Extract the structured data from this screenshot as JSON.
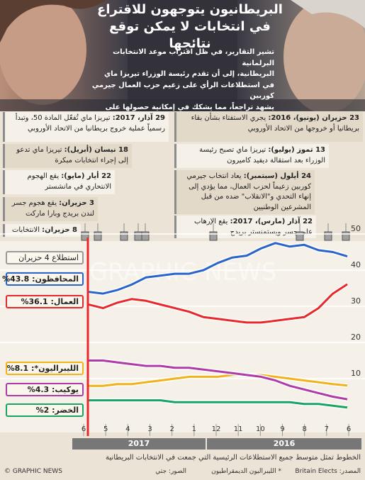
{
  "headline": {
    "line1": "البريطانيون يتوجهون للاقتراع",
    "line2": "في انتخابات لا يمكن توقع نتائجها"
  },
  "intro": [
    "تشير التقارير، في ظل اقتراب موعد الانتخابات البرلمانية",
    "البريطانية، إلى أن تقدم رئيسة الوزراء تيريزا ماي",
    "في استطلاعات الرأي على زعيم حزب العمال جيرمي كوربين",
    "يشهد تراجعاً، مما يشكك في إمكانية حصولها على أغلبية ساحقة"
  ],
  "events": [
    {
      "date": "29 آذار، 2017:",
      "text": "تيريزا ماي تُفعّل المادة 50، وتبدأ رسمياً عملية خروج بريطانيا من الاتحاد الأوروبي"
    },
    {
      "date": "18 نيسان (أبريل):",
      "text": "تيريزا ماي تدعو إلى إجراء انتخابات مبكرة"
    },
    {
      "date": "22 أيار (مايو):",
      "text": "يقع الهجوم الانتحاري في مانشستر"
    },
    {
      "date": "3 حزيران:",
      "text": "يقع هجوم جسر لندن بريدج وبارا ماركت"
    },
    {
      "date": "8 حزيران:",
      "text": "الانتخابات"
    },
    {
      "date": "23 حزيران (يونيو)، 2016:",
      "text": "يجري الاستفتاء بشأن بقاء بريطانيا أو خروجها من الاتحاد الأوروبي"
    },
    {
      "date": "13 تموز (يوليو):",
      "text": "تيريزا ماي تصبح رئيسة الوزراء بعد استقالة ديفيد كاميرون"
    },
    {
      "date": "24 أيلول (سبتمبر):",
      "text": "يعاد انتخاب جيرمي كوربين زعيماً لحزب العمال، مما يؤدي إلى إنهاء التحدي و\"الانقلاب\" ضده من قبل المشرعين الوطنيين"
    },
    {
      "date": "22 آذار (مارس)، 2017:",
      "text": "يقع الإرهاب على جسر ويستمنستر بريدج"
    }
  ],
  "labels": {
    "poll": "استطلاع 4 حزيران",
    "con": "المحافظون: 43.8%",
    "lab": "العمال: 36.1%",
    "lib": "الليبراليون*: 8.1%",
    "ukip": "يوكيب: 4.3%",
    "green": "الخضر: 2%"
  },
  "watermark": "GRAPHIC NEWS",
  "chart_data": {
    "type": "line",
    "x_ticks": [
      "6",
      "5",
      "4",
      "3",
      "2",
      "1",
      "12",
      "11",
      "10",
      "9",
      "8",
      "7",
      "6"
    ],
    "x_direction": "right-to-left (time runs from June 2016 on the right to June 2017 on the left)",
    "years": [
      "2017",
      "2016"
    ],
    "y_ticks": [
      50,
      40,
      30,
      20,
      10
    ],
    "ylim": [
      0,
      50
    ],
    "series": [
      {
        "name": "المحافظون",
        "color": "#2a63c9",
        "values": [
          34,
          33.5,
          34.5,
          36,
          38,
          38.5,
          39,
          39,
          40,
          42,
          43.5,
          44,
          46,
          47.5,
          46.5,
          47,
          45.5,
          45,
          43.8
        ]
      },
      {
        "name": "العمال",
        "color": "#e8282a",
        "values": [
          30.5,
          29.5,
          31,
          32,
          31.5,
          30.5,
          29.5,
          28.5,
          27,
          26.5,
          26,
          25.5,
          25.5,
          26,
          26.5,
          27,
          29.5,
          33.5,
          36.1
        ]
      },
      {
        "name": "الليبراليون*",
        "color": "#f2b21a",
        "values": [
          8,
          8,
          8.5,
          8.5,
          9,
          9.5,
          10,
          10.5,
          10.5,
          10.5,
          11,
          11,
          11,
          10.5,
          10,
          9.5,
          9,
          8.5,
          8.1
        ]
      },
      {
        "name": "يوكيب",
        "color": "#b03aa7",
        "values": [
          15,
          15,
          14.5,
          14,
          13.5,
          13.5,
          13,
          13,
          12.5,
          12,
          11.5,
          11,
          10.5,
          9.5,
          8,
          7,
          6,
          5,
          4.3
        ]
      },
      {
        "name": "الخضر",
        "color": "#1aa362",
        "values": [
          4,
          4,
          4,
          4,
          4,
          4,
          3.5,
          3.5,
          3.5,
          3.5,
          3.5,
          3.5,
          3.5,
          3.5,
          3.5,
          3,
          3,
          2.5,
          2
        ]
      }
    ]
  },
  "footer": {
    "caption": "الخطوط تمثل متوسط جميع الاستطلاعات الرئيسية التي جمعت في الانتخابات البريطانية",
    "source": "المصدر: Britain Elects",
    "note": "* الليبراليون الديمقراطيون",
    "photos": "الصور: جتي",
    "credit": "© GRAPHIC NEWS"
  },
  "colors": {
    "con": "#2a63c9",
    "lab": "#e8282a",
    "lib": "#f2b21a",
    "ukip": "#b03aa7",
    "green": "#1aa362",
    "election": "#e8282a"
  }
}
